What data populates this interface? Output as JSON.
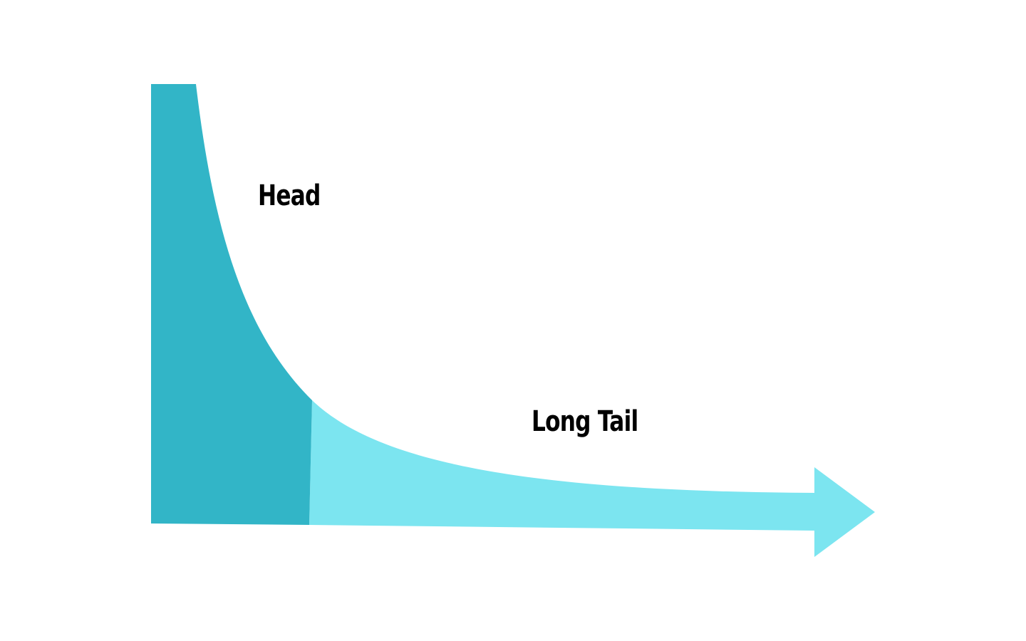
{
  "diagram": {
    "labels": {
      "head": "Head",
      "tail": "Long Tail"
    },
    "colors": {
      "head_fill": "#32b5c7",
      "tail_fill": "#7ce5f0",
      "background": "#ffffff",
      "text": "#000000"
    },
    "shapes": {
      "head_region": "dark-teal-area",
      "tail_region": "light-cyan-area",
      "arrow": "arrow-head-right"
    }
  }
}
